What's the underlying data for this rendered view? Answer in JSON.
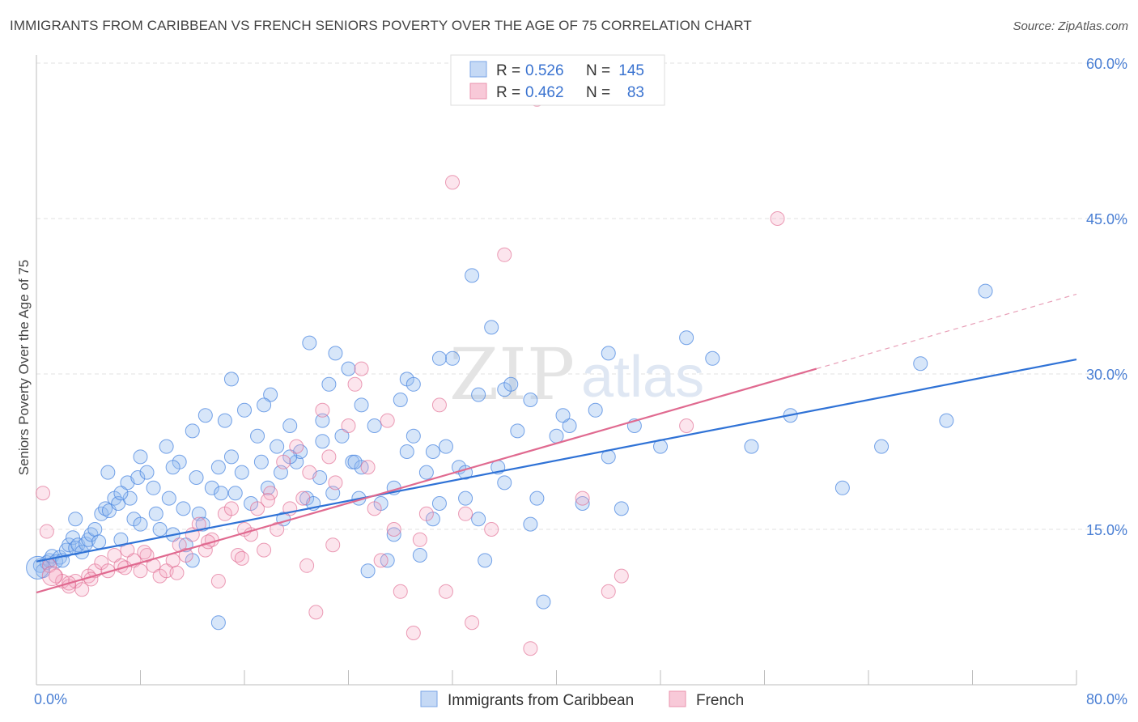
{
  "header": {
    "title": "IMMIGRANTS FROM CARIBBEAN VS FRENCH SENIORS POVERTY OVER THE AGE OF 75 CORRELATION CHART",
    "source": "Source: ZipAtlas.com"
  },
  "watermark": {
    "zip": "ZIP",
    "atlas": "atlas"
  },
  "stats_legend": [
    {
      "r_label": "R =",
      "r_value": "0.526",
      "n_label": "N =",
      "n_value": "145",
      "color": "#4a86e0"
    },
    {
      "r_label": "R =",
      "r_value": "0.462",
      "n_label": "N =",
      "n_value": "83",
      "color": "#e06a90"
    }
  ],
  "chart_data": {
    "type": "scatter",
    "title": "IMMIGRANTS FROM CARIBBEAN VS FRENCH SENIORS POVERTY OVER THE AGE OF 75 CORRELATION CHART",
    "xlabel": "",
    "ylabel": "Seniors Poverty Over the Age of 75",
    "xlim": [
      0,
      80
    ],
    "ylim": [
      0,
      60
    ],
    "x_tick_labels": [
      "0.0%",
      "80.0%"
    ],
    "y_ticks": [
      15,
      30,
      45,
      60
    ],
    "y_tick_labels": [
      "15.0%",
      "30.0%",
      "45.0%",
      "60.0%"
    ],
    "grid": true,
    "legend_position": "bottom",
    "series": [
      {
        "name": "Immigrants from Caribbean",
        "color": "#4a86e0",
        "trend": {
          "x": [
            0,
            80
          ],
          "y": [
            11.9,
            31.4
          ]
        },
        "points": [
          [
            0.3,
            11.5
          ],
          [
            0.5,
            11.0
          ],
          [
            0.8,
            11.8
          ],
          [
            1.0,
            12.0
          ],
          [
            1.2,
            12.4
          ],
          [
            1.5,
            11.9
          ],
          [
            1.8,
            12.3
          ],
          [
            2.0,
            12.0
          ],
          [
            2.3,
            13.0
          ],
          [
            2.5,
            13.5
          ],
          [
            2.8,
            14.2
          ],
          [
            3.0,
            13.2
          ],
          [
            3.2,
            13.5
          ],
          [
            3.5,
            12.8
          ],
          [
            3.8,
            13.6
          ],
          [
            4.0,
            14.0
          ],
          [
            4.2,
            14.5
          ],
          [
            4.5,
            15.0
          ],
          [
            4.8,
            13.8
          ],
          [
            5.0,
            16.5
          ],
          [
            5.3,
            17.0
          ],
          [
            5.6,
            16.8
          ],
          [
            6.0,
            18.0
          ],
          [
            6.3,
            17.5
          ],
          [
            6.5,
            14.0
          ],
          [
            7.0,
            19.5
          ],
          [
            7.2,
            18.0
          ],
          [
            7.5,
            16.0
          ],
          [
            7.8,
            20.0
          ],
          [
            8.0,
            22.0
          ],
          [
            8.5,
            20.5
          ],
          [
            9.0,
            19.0
          ],
          [
            9.2,
            16.5
          ],
          [
            9.5,
            15.0
          ],
          [
            10.0,
            23.0
          ],
          [
            10.2,
            18.0
          ],
          [
            10.5,
            14.5
          ],
          [
            11.0,
            21.5
          ],
          [
            11.3,
            17.0
          ],
          [
            11.5,
            13.5
          ],
          [
            12.0,
            24.5
          ],
          [
            12.3,
            20.0
          ],
          [
            12.5,
            16.5
          ],
          [
            12.8,
            15.5
          ],
          [
            13.0,
            26.0
          ],
          [
            13.5,
            19.0
          ],
          [
            14.0,
            21.0
          ],
          [
            14.2,
            18.5
          ],
          [
            14.5,
            25.5
          ],
          [
            15.0,
            22.0
          ],
          [
            15.3,
            18.5
          ],
          [
            15.8,
            20.5
          ],
          [
            16.0,
            26.5
          ],
          [
            16.5,
            17.5
          ],
          [
            17.0,
            24.0
          ],
          [
            17.3,
            21.5
          ],
          [
            17.8,
            19.0
          ],
          [
            18.0,
            28.0
          ],
          [
            18.5,
            23.0
          ],
          [
            18.8,
            20.5
          ],
          [
            19.0,
            16.0
          ],
          [
            19.5,
            25.0
          ],
          [
            20.0,
            21.5
          ],
          [
            20.3,
            22.5
          ],
          [
            20.8,
            18.0
          ],
          [
            21.0,
            33.0
          ],
          [
            21.3,
            17.5
          ],
          [
            21.8,
            20.0
          ],
          [
            22.0,
            25.5
          ],
          [
            22.5,
            29.0
          ],
          [
            22.8,
            18.5
          ],
          [
            23.0,
            32.0
          ],
          [
            23.5,
            24.0
          ],
          [
            24.0,
            30.5
          ],
          [
            24.3,
            21.5
          ],
          [
            24.8,
            18.0
          ],
          [
            25.0,
            27.0
          ],
          [
            25.5,
            11.0
          ],
          [
            26.0,
            25.0
          ],
          [
            26.5,
            17.5
          ],
          [
            27.0,
            12.0
          ],
          [
            27.5,
            19.0
          ],
          [
            28.0,
            27.5
          ],
          [
            28.5,
            22.5
          ],
          [
            29.0,
            24.0
          ],
          [
            29.5,
            12.5
          ],
          [
            30.0,
            20.5
          ],
          [
            30.5,
            16.0
          ],
          [
            31.0,
            17.5
          ],
          [
            31.5,
            23.0
          ],
          [
            32.0,
            31.5
          ],
          [
            32.5,
            21.0
          ],
          [
            33.0,
            18.0
          ],
          [
            33.5,
            39.5
          ],
          [
            34.0,
            16.0
          ],
          [
            34.5,
            12.0
          ],
          [
            35.0,
            34.5
          ],
          [
            35.5,
            21.0
          ],
          [
            36.0,
            28.5
          ],
          [
            36.5,
            29.0
          ],
          [
            37.0,
            24.5
          ],
          [
            38.0,
            15.5
          ],
          [
            38.5,
            18.0
          ],
          [
            39.0,
            8.0
          ],
          [
            40.0,
            24.0
          ],
          [
            41.0,
            25.0
          ],
          [
            42.0,
            17.5
          ],
          [
            43.0,
            26.5
          ],
          [
            44.0,
            22.0
          ],
          [
            45.0,
            17.0
          ],
          [
            46.0,
            25.0
          ],
          [
            48.0,
            23.0
          ],
          [
            52.0,
            31.5
          ],
          [
            55.0,
            23.0
          ],
          [
            58.0,
            26.0
          ],
          [
            62.0,
            19.0
          ],
          [
            68.0,
            31.0
          ],
          [
            73.0,
            38.0
          ],
          [
            65.0,
            23.0
          ],
          [
            70.0,
            25.5
          ],
          [
            36.0,
            19.5
          ],
          [
            27.5,
            14.5
          ],
          [
            14.0,
            6.0
          ],
          [
            22.0,
            23.5
          ],
          [
            25.0,
            21.0
          ],
          [
            17.5,
            27.0
          ],
          [
            19.5,
            22.0
          ],
          [
            28.5,
            29.5
          ],
          [
            30.5,
            22.5
          ],
          [
            33.0,
            20.5
          ],
          [
            38.0,
            27.5
          ],
          [
            40.5,
            26.0
          ],
          [
            44.0,
            32.0
          ],
          [
            50.0,
            33.5
          ],
          [
            8.0,
            15.5
          ],
          [
            6.5,
            18.5
          ],
          [
            10.5,
            21.0
          ],
          [
            12.0,
            12.0
          ],
          [
            15.0,
            29.5
          ],
          [
            24.5,
            21.5
          ],
          [
            29.0,
            29.0
          ],
          [
            31.0,
            31.5
          ],
          [
            34.0,
            28.0
          ],
          [
            3.0,
            16.0
          ],
          [
            5.5,
            20.5
          ]
        ]
      },
      {
        "name": "French",
        "color": "#e06a90",
        "trend": {
          "x": [
            0,
            60
          ],
          "y": [
            8.9,
            30.5
          ]
        },
        "trend_ext": {
          "x": [
            60,
            80
          ],
          "y": [
            30.5,
            37.7
          ]
        },
        "points": [
          [
            0.5,
            18.5
          ],
          [
            0.8,
            14.8
          ],
          [
            1.0,
            11.5
          ],
          [
            1.5,
            10.5
          ],
          [
            2.0,
            10.0
          ],
          [
            2.5,
            9.5
          ],
          [
            3.0,
            10.0
          ],
          [
            3.5,
            9.2
          ],
          [
            4.0,
            10.5
          ],
          [
            4.5,
            11.0
          ],
          [
            5.0,
            11.8
          ],
          [
            5.5,
            11.0
          ],
          [
            6.0,
            12.5
          ],
          [
            6.5,
            11.5
          ],
          [
            7.0,
            13.0
          ],
          [
            7.5,
            12.0
          ],
          [
            8.0,
            11.0
          ],
          [
            8.5,
            12.5
          ],
          [
            9.0,
            11.5
          ],
          [
            9.5,
            10.5
          ],
          [
            10.0,
            11.0
          ],
          [
            10.5,
            12.0
          ],
          [
            11.0,
            13.5
          ],
          [
            11.5,
            12.5
          ],
          [
            12.0,
            14.5
          ],
          [
            12.5,
            15.5
          ],
          [
            13.0,
            13.0
          ],
          [
            13.5,
            14.0
          ],
          [
            14.0,
            10.0
          ],
          [
            14.5,
            16.5
          ],
          [
            15.0,
            17.0
          ],
          [
            15.5,
            12.5
          ],
          [
            16.0,
            15.0
          ],
          [
            16.5,
            14.5
          ],
          [
            17.0,
            17.0
          ],
          [
            17.5,
            13.0
          ],
          [
            18.0,
            18.5
          ],
          [
            18.5,
            15.0
          ],
          [
            19.0,
            21.5
          ],
          [
            19.5,
            17.0
          ],
          [
            20.0,
            23.0
          ],
          [
            20.5,
            18.0
          ],
          [
            21.0,
            20.5
          ],
          [
            21.5,
            7.0
          ],
          [
            22.0,
            26.5
          ],
          [
            22.5,
            22.0
          ],
          [
            23.0,
            19.5
          ],
          [
            24.0,
            25.0
          ],
          [
            24.5,
            29.0
          ],
          [
            25.0,
            30.5
          ],
          [
            25.5,
            21.0
          ],
          [
            26.0,
            17.0
          ],
          [
            27.0,
            25.5
          ],
          [
            27.5,
            15.0
          ],
          [
            28.0,
            9.0
          ],
          [
            29.0,
            5.0
          ],
          [
            30.0,
            16.5
          ],
          [
            31.0,
            27.0
          ],
          [
            32.0,
            48.5
          ],
          [
            33.0,
            16.5
          ],
          [
            33.5,
            6.0
          ],
          [
            35.0,
            15.0
          ],
          [
            36.0,
            41.5
          ],
          [
            38.0,
            3.5
          ],
          [
            38.5,
            56.5
          ],
          [
            42.0,
            18.0
          ],
          [
            44.0,
            9.0
          ],
          [
            45.0,
            10.5
          ],
          [
            50.0,
            25.0
          ],
          [
            57.0,
            45.0
          ],
          [
            2.5,
            9.8
          ],
          [
            4.2,
            10.2
          ],
          [
            6.8,
            11.3
          ],
          [
            8.3,
            12.8
          ],
          [
            10.8,
            10.8
          ],
          [
            13.2,
            13.8
          ],
          [
            15.8,
            12.2
          ],
          [
            17.8,
            17.8
          ],
          [
            20.8,
            11.5
          ],
          [
            22.8,
            13.5
          ],
          [
            29.5,
            14.0
          ],
          [
            26.5,
            12.0
          ],
          [
            31.5,
            9.0
          ]
        ]
      }
    ]
  }
}
